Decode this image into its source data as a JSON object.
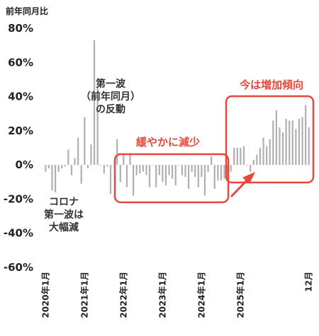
{
  "chart_data": {
    "type": "bar",
    "title": "前年同月比",
    "ylim": [
      -60,
      80
    ],
    "yticks": [
      80,
      60,
      40,
      20,
      0,
      -20,
      -40,
      -60
    ],
    "ytick_labels": [
      "80%",
      "60%",
      "40%",
      "20%",
      "0%",
      "-20%",
      "-40%",
      "-60%"
    ],
    "xtick_labels": [
      "2020年1月",
      "2021年1月",
      "2022年1月",
      "2023年1月",
      "2024年1月",
      "2025年1月",
      "12月"
    ],
    "grid": "none",
    "values": [
      -4,
      -2,
      -15,
      -16,
      -4,
      -2,
      -1,
      9,
      -6,
      4,
      16,
      -11,
      28,
      -2,
      12,
      73,
      46,
      0,
      -5,
      -1,
      -17,
      0,
      15,
      -10,
      6,
      -13,
      7,
      -18,
      -6,
      -5,
      -4,
      -6,
      -13,
      0,
      -13,
      -6,
      -10,
      -12,
      -6,
      -8,
      -12,
      0,
      -6,
      -7,
      -14,
      -4,
      -7,
      -13,
      -7,
      -18,
      -4,
      5,
      -14,
      -9,
      -9,
      -8,
      -8,
      -4,
      10,
      10,
      10,
      11,
      0,
      -4,
      3,
      6,
      10,
      16,
      11,
      15,
      26,
      32,
      22,
      19,
      27,
      26,
      26,
      21,
      27,
      28,
      35,
      22
    ],
    "bar_color": "#b0b0b0",
    "annotations": [
      {
        "text_lines": [
          "コロナ",
          "第一波は",
          "大幅減"
        ],
        "color": "#333333"
      },
      {
        "text_lines": [
          "第一波",
          "（前年同月）",
          "の反動"
        ],
        "color": "#333333"
      },
      {
        "text_lines": [
          "緩やかに減少"
        ],
        "color": "#e8473c"
      },
      {
        "text_lines": [
          "今は増加傾向"
        ],
        "color": "#e8473c"
      }
    ],
    "highlight_color": "#e8473c"
  }
}
